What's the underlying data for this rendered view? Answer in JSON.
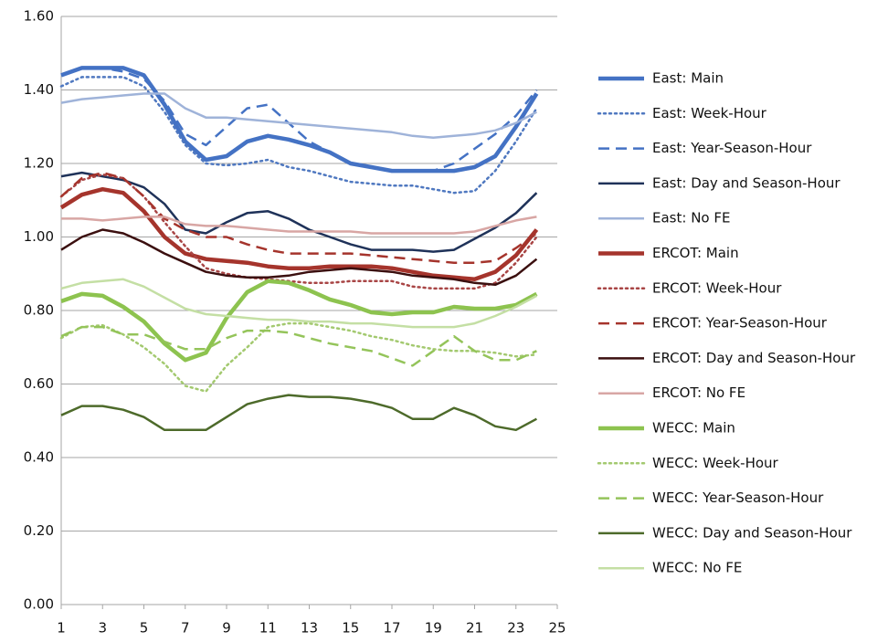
{
  "chart_data": {
    "type": "line",
    "x": [
      1,
      2,
      3,
      4,
      5,
      6,
      7,
      8,
      9,
      10,
      11,
      12,
      13,
      14,
      15,
      16,
      17,
      18,
      19,
      20,
      21,
      22,
      23,
      24
    ],
    "xlim": [
      1,
      25
    ],
    "xticks": [
      1,
      3,
      5,
      7,
      9,
      11,
      13,
      15,
      17,
      19,
      21,
      23,
      25
    ],
    "ylim": [
      0,
      1.6
    ],
    "yticks": [
      {
        "value": 0,
        "label": "0.00"
      },
      {
        "value": 0.2,
        "label": "0.20"
      },
      {
        "value": 0.4,
        "label": "0.40"
      },
      {
        "value": 0.6,
        "label": "0.60"
      },
      {
        "value": 0.8,
        "label": "0.80"
      },
      {
        "value": 1.0,
        "label": "1.00"
      },
      {
        "value": 1.2,
        "label": "1.20"
      },
      {
        "value": 1.4,
        "label": "1.40"
      },
      {
        "value": 1.6,
        "label": "1.60"
      }
    ],
    "grid": true,
    "legend": "right",
    "series": [
      {
        "name": "East: Main",
        "color": "#4472c4",
        "dash": "solid",
        "width": 4.5,
        "values": [
          1.44,
          1.46,
          1.46,
          1.46,
          1.44,
          1.36,
          1.26,
          1.21,
          1.22,
          1.26,
          1.275,
          1.265,
          1.25,
          1.23,
          1.2,
          1.19,
          1.18,
          1.18,
          1.18,
          1.18,
          1.19,
          1.22,
          1.3,
          1.39
        ]
      },
      {
        "name": "East: Week-Hour",
        "color": "#4f78c0",
        "dash": "dotted",
        "width": 2.5,
        "values": [
          1.41,
          1.435,
          1.435,
          1.435,
          1.41,
          1.34,
          1.25,
          1.2,
          1.195,
          1.2,
          1.21,
          1.19,
          1.18,
          1.165,
          1.15,
          1.145,
          1.14,
          1.14,
          1.13,
          1.12,
          1.125,
          1.18,
          1.26,
          1.35
        ]
      },
      {
        "name": "East: Year-Season-Hour",
        "color": "#4472c4",
        "dash": "dashed",
        "width": 2.5,
        "values": [
          1.44,
          1.46,
          1.46,
          1.45,
          1.43,
          1.37,
          1.28,
          1.25,
          1.3,
          1.35,
          1.36,
          1.31,
          1.26,
          1.23,
          1.2,
          1.19,
          1.18,
          1.18,
          1.18,
          1.2,
          1.24,
          1.28,
          1.33,
          1.4
        ]
      },
      {
        "name": "East: Day and Season-Hour",
        "color": "#1f3259",
        "dash": "solid",
        "width": 2.5,
        "values": [
          1.165,
          1.175,
          1.165,
          1.155,
          1.135,
          1.09,
          1.02,
          1.01,
          1.04,
          1.065,
          1.07,
          1.05,
          1.02,
          1.0,
          0.98,
          0.965,
          0.965,
          0.965,
          0.96,
          0.965,
          0.995,
          1.025,
          1.065,
          1.12
        ]
      },
      {
        "name": "East: No FE",
        "color": "#9fb3d9",
        "dash": "solid",
        "width": 2.5,
        "values": [
          1.365,
          1.375,
          1.38,
          1.385,
          1.39,
          1.39,
          1.35,
          1.325,
          1.325,
          1.32,
          1.315,
          1.31,
          1.305,
          1.3,
          1.295,
          1.29,
          1.285,
          1.275,
          1.27,
          1.275,
          1.28,
          1.29,
          1.31,
          1.34
        ]
      },
      {
        "name": "ERCOT: Main",
        "color": "#a5342c",
        "dash": "solid",
        "width": 4.5,
        "values": [
          1.08,
          1.115,
          1.13,
          1.12,
          1.07,
          1.0,
          0.955,
          0.94,
          0.935,
          0.93,
          0.92,
          0.915,
          0.915,
          0.92,
          0.92,
          0.92,
          0.915,
          0.905,
          0.895,
          0.89,
          0.885,
          0.905,
          0.95,
          1.02
        ]
      },
      {
        "name": "ERCOT: Week-Hour",
        "color": "#a84545",
        "dash": "dotted",
        "width": 2.5,
        "values": [
          1.11,
          1.155,
          1.17,
          1.16,
          1.11,
          1.04,
          0.975,
          0.915,
          0.9,
          0.89,
          0.885,
          0.88,
          0.875,
          0.875,
          0.88,
          0.88,
          0.88,
          0.865,
          0.86,
          0.86,
          0.86,
          0.875,
          0.93,
          1.0
        ]
      },
      {
        "name": "ERCOT: Year-Season-Hour",
        "color": "#a5342c",
        "dash": "dashed",
        "width": 2.5,
        "values": [
          1.11,
          1.16,
          1.175,
          1.16,
          1.11,
          1.05,
          1.02,
          1.0,
          1.0,
          0.98,
          0.965,
          0.955,
          0.955,
          0.955,
          0.955,
          0.95,
          0.945,
          0.94,
          0.935,
          0.93,
          0.93,
          0.935,
          0.97,
          1.01
        ]
      },
      {
        "name": "ERCOT: Day and Season-Hour",
        "color": "#3b0f0f",
        "dash": "solid",
        "width": 2.5,
        "values": [
          0.965,
          1.0,
          1.02,
          1.01,
          0.985,
          0.955,
          0.93,
          0.905,
          0.895,
          0.89,
          0.89,
          0.895,
          0.905,
          0.91,
          0.915,
          0.91,
          0.905,
          0.895,
          0.89,
          0.885,
          0.875,
          0.87,
          0.895,
          0.94
        ]
      },
      {
        "name": "ERCOT: No FE",
        "color": "#d8a6a4",
        "dash": "solid",
        "width": 2.5,
        "values": [
          1.05,
          1.05,
          1.045,
          1.05,
          1.055,
          1.055,
          1.035,
          1.03,
          1.03,
          1.025,
          1.02,
          1.015,
          1.015,
          1.015,
          1.015,
          1.01,
          1.01,
          1.01,
          1.01,
          1.01,
          1.015,
          1.03,
          1.045,
          1.055
        ]
      },
      {
        "name": "WECC: Main",
        "color": "#8dc34f",
        "dash": "solid",
        "width": 4.5,
        "values": [
          0.825,
          0.845,
          0.84,
          0.81,
          0.77,
          0.71,
          0.665,
          0.685,
          0.78,
          0.85,
          0.88,
          0.875,
          0.855,
          0.83,
          0.815,
          0.795,
          0.79,
          0.795,
          0.795,
          0.81,
          0.805,
          0.805,
          0.815,
          0.845
        ]
      },
      {
        "name": "WECC: Week-Hour",
        "color": "#a3c96f",
        "dash": "dotted",
        "width": 2.5,
        "values": [
          0.725,
          0.755,
          0.76,
          0.735,
          0.7,
          0.655,
          0.595,
          0.58,
          0.65,
          0.7,
          0.755,
          0.765,
          0.765,
          0.755,
          0.745,
          0.73,
          0.72,
          0.705,
          0.695,
          0.69,
          0.69,
          0.685,
          0.675,
          0.68
        ]
      },
      {
        "name": "WECC: Year-Season-Hour",
        "color": "#94c45a",
        "dash": "dashed",
        "width": 2.5,
        "values": [
          0.73,
          0.755,
          0.755,
          0.735,
          0.735,
          0.715,
          0.695,
          0.695,
          0.725,
          0.745,
          0.745,
          0.74,
          0.725,
          0.71,
          0.7,
          0.69,
          0.67,
          0.65,
          0.69,
          0.73,
          0.69,
          0.665,
          0.665,
          0.69
        ]
      },
      {
        "name": "WECC: Day and Season-Hour",
        "color": "#4d6a2a",
        "dash": "solid",
        "width": 2.5,
        "values": [
          0.515,
          0.54,
          0.54,
          0.53,
          0.51,
          0.475,
          0.475,
          0.475,
          0.51,
          0.545,
          0.56,
          0.57,
          0.565,
          0.565,
          0.56,
          0.55,
          0.535,
          0.505,
          0.505,
          0.535,
          0.515,
          0.485,
          0.475,
          0.505
        ]
      },
      {
        "name": "WECC: No FE",
        "color": "#c4dfa4",
        "dash": "solid",
        "width": 2.5,
        "values": [
          0.86,
          0.875,
          0.88,
          0.885,
          0.865,
          0.835,
          0.805,
          0.79,
          0.785,
          0.78,
          0.775,
          0.775,
          0.77,
          0.77,
          0.765,
          0.765,
          0.76,
          0.755,
          0.755,
          0.755,
          0.765,
          0.785,
          0.81,
          0.84
        ]
      }
    ]
  }
}
